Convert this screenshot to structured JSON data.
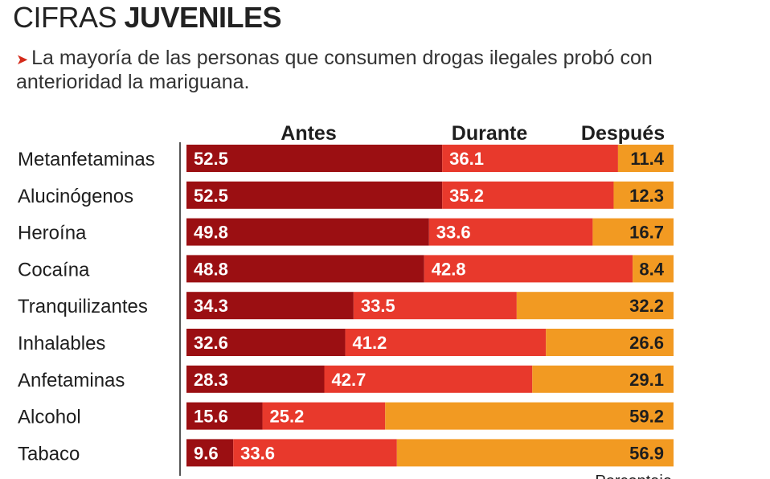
{
  "title": {
    "part1": "CIFRAS ",
    "part2": "JUVENILES"
  },
  "subtitle": "La mayoría de las personas que consumen drogas ilegales probó con anterioridad la mariguana.",
  "colors": {
    "antes": "#9b0f12",
    "durante": "#e8392c",
    "despues": "#f29a22"
  },
  "chart_data": {
    "type": "bar",
    "stacked": true,
    "orientation": "horizontal",
    "categories": [
      "Metanfetaminas",
      "Alucinógenos",
      "Heroína",
      "Cocaína",
      "Tranquilizantes",
      "Inhalables",
      "Anfetaminas",
      "Alcohol",
      "Tabaco"
    ],
    "series": [
      {
        "name": "Antes",
        "values": [
          52.5,
          52.5,
          49.8,
          48.8,
          34.3,
          32.6,
          28.3,
          15.6,
          9.6
        ]
      },
      {
        "name": "Durante",
        "values": [
          36.1,
          35.2,
          33.6,
          42.8,
          33.5,
          41.2,
          42.7,
          25.2,
          33.6
        ]
      },
      {
        "name": "Después",
        "values": [
          11.4,
          12.3,
          16.7,
          8.4,
          32.2,
          26.6,
          29.1,
          59.2,
          56.9
        ]
      }
    ],
    "xlim": [
      0,
      100
    ],
    "unit_label": "Porcentaje"
  }
}
